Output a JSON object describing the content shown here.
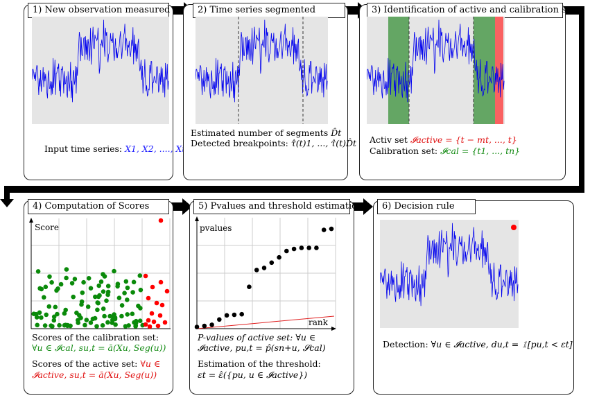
{
  "flow_colors": {
    "arrow": "#000000",
    "plot_bg": "#e5e5e5",
    "series": "#0000ee",
    "calibration": "#2e8b2e",
    "active": "#ff4040",
    "anomaly": "#ff0000"
  },
  "steps": [
    {
      "title": "1) New observation measured",
      "lines": [
        {
          "prefix": "Input time series: ",
          "formula": "X1, X2, ...., Xt"
        }
      ]
    },
    {
      "title": "2) Time series segmented",
      "lines": [
        {
          "prefix": "Estimated number of segments ",
          "formula": "D̂t"
        },
        {
          "prefix": "Detected breakpoints: ",
          "formula": "τ̂(t)1, ..., τ̂(t)D̂t"
        }
      ]
    },
    {
      "title": "3) Identification of active and calibration sets",
      "lines": [
        {
          "prefix": "Activ set ",
          "formula": "𝓘active = {t − mt, ..., t}"
        },
        {
          "prefix": "Calibration set: ",
          "formula": "𝓘cal = {t1, ..., tn}"
        }
      ]
    },
    {
      "title": "4) Computation of Scores",
      "axis_label": "Score",
      "lines": [
        {
          "text": "Scores of the calibration set:"
        },
        {
          "formula": "∀u ∈ 𝓘cal, su,t = ā(Xu, Seg(u))"
        },
        {
          "prefix": "Scores of the active set: ",
          "formula": "∀u ∈"
        },
        {
          "formula": "𝓘active, su,t = ā(Xu, Seg(u))"
        }
      ]
    },
    {
      "title": "5) Pvalues and threshold estimation",
      "axis_label_y": "pvalues",
      "axis_label_x": "rank",
      "lines": [
        {
          "prefix": "P-values of active set: ",
          "formula": "∀u ∈"
        },
        {
          "formula": "𝓘active, pu,t = p̂(sn+u, 𝓢cal)"
        },
        {
          "text": "Estimation of the threshold:"
        },
        {
          "formula": "εt = ε̂({pu, u ∈ 𝓘active})"
        }
      ]
    },
    {
      "title": "6) Decision rule",
      "lines": [
        {
          "prefix": "Detection: ",
          "formula": "∀u ∈ 𝓘active, du,t = 𝟙[pu,t < εt]"
        }
      ]
    }
  ],
  "pvalues": [
    0.01,
    0.02,
    0.03,
    0.08,
    0.12,
    0.125,
    0.13,
    0.39,
    0.55,
    0.57,
    0.62,
    0.67,
    0.73,
    0.75,
    0.76,
    0.76,
    0.76,
    0.93,
    0.94
  ]
}
